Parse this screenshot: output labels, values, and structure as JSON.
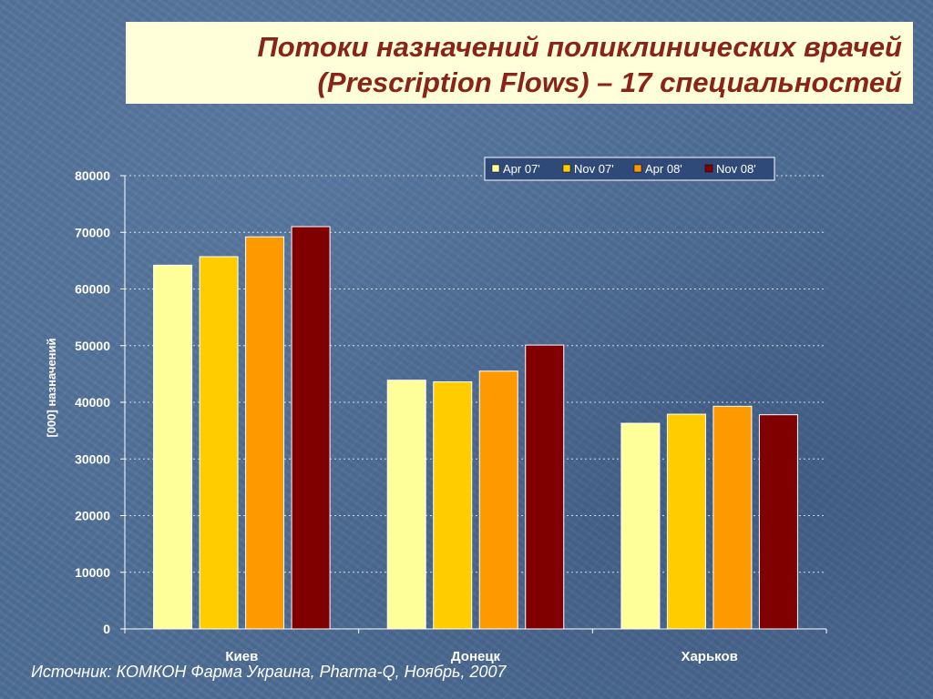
{
  "slide": {
    "title_line1": "Потоки назначений поликлинических врачей",
    "title_line2": "(Prescription Flows) – 17 специальностей",
    "source": "Источник: КОМКОН Фарма Украина, Pharma-Q, Ноябрь, 2007"
  },
  "colors": {
    "background": "#4f6f97",
    "title_box": "#ffffd9",
    "title_text": "#8a2318",
    "legend_box": "#2f4a78",
    "series": [
      "#ffff99",
      "#ffcc00",
      "#ff9900",
      "#800000"
    ]
  },
  "chart_data": {
    "type": "bar",
    "title": "",
    "xlabel": "",
    "ylabel": "[000] назначений",
    "ylim": [
      0,
      80000
    ],
    "yticks": [
      0,
      10000,
      20000,
      30000,
      40000,
      50000,
      60000,
      70000,
      80000
    ],
    "grid": true,
    "legend_position": "top-right",
    "categories": [
      "Киев",
      "Донецк",
      "Харьков"
    ],
    "series": [
      {
        "name": "Apr 07'",
        "values": [
          64200,
          43900,
          36300
        ]
      },
      {
        "name": "Nov 07'",
        "values": [
          65700,
          43600,
          37900
        ]
      },
      {
        "name": "Apr 08'",
        "values": [
          69200,
          45500,
          39300
        ]
      },
      {
        "name": "Nov 08'",
        "values": [
          71000,
          50100,
          37800
        ]
      }
    ]
  }
}
